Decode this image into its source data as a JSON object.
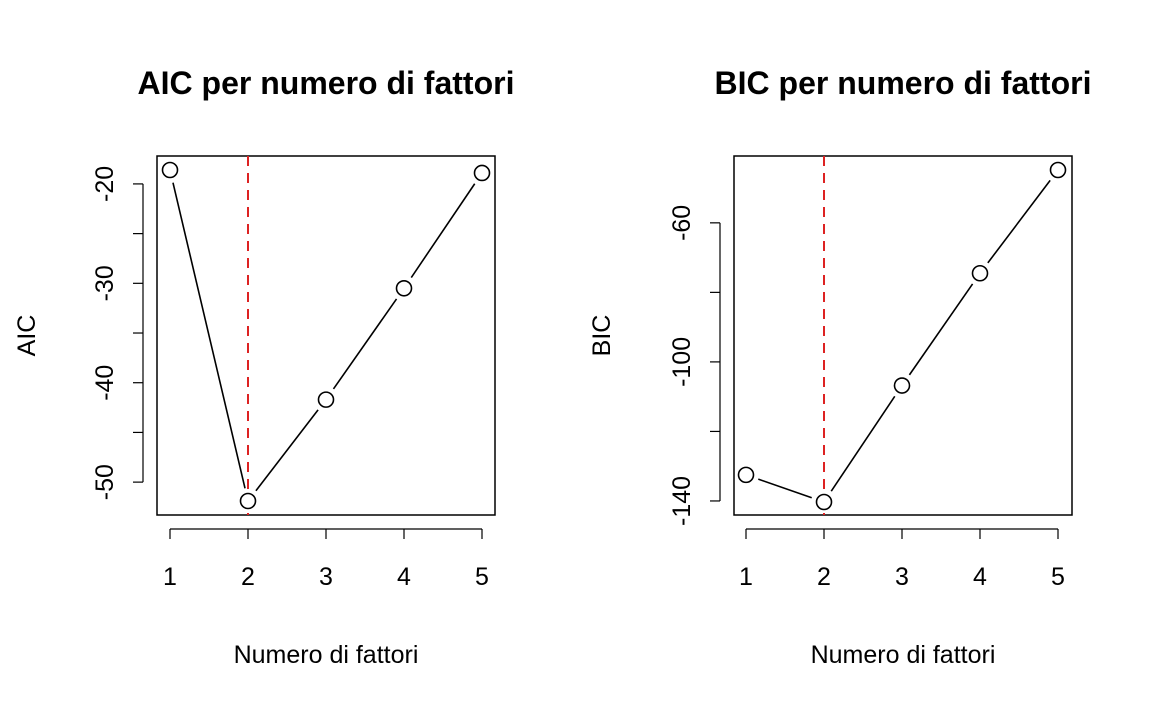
{
  "chart_data": [
    {
      "type": "line",
      "title": "AIC per numero di fattori",
      "xlabel": "Numero di fattori",
      "ylabel": "AIC",
      "x": [
        1,
        2,
        3,
        4,
        5
      ],
      "series": [
        {
          "values": [
            -18.6,
            -51.9,
            -41.7,
            -30.5,
            -18.9
          ]
        }
      ],
      "xlim": [
        1,
        5
      ],
      "ylim": [
        -52,
        -18.6
      ],
      "xticks": [
        1,
        2,
        3,
        4,
        5
      ],
      "yticks": [
        -50,
        -45,
        -40,
        -35,
        -30,
        -25,
        -20
      ],
      "ytick_labels": [
        "-50",
        "",
        "-40",
        "",
        "-30",
        "",
        "-20"
      ],
      "reference_line": {
        "x": 2,
        "style": "dashed",
        "color": "#dd2222"
      },
      "marker": "open-circle",
      "grid": false
    },
    {
      "type": "line",
      "title": "BIC per numero di fattori",
      "xlabel": "Numero di fattori",
      "ylabel": "BIC",
      "x": [
        1,
        2,
        3,
        4,
        5
      ],
      "series": [
        {
          "values": [
            -132.5,
            -140.3,
            -106.8,
            -74.5,
            -44.8
          ]
        }
      ],
      "xlim": [
        1,
        5
      ],
      "ylim": [
        -140.3,
        -44.8
      ],
      "xticks": [
        1,
        2,
        3,
        4,
        5
      ],
      "yticks": [
        -140,
        -120,
        -100,
        -80,
        -60
      ],
      "ytick_labels": [
        "-140",
        "",
        "-100",
        "",
        "-60"
      ],
      "reference_line": {
        "x": 2,
        "style": "dashed",
        "color": "#dd2222"
      },
      "marker": "open-circle",
      "grid": false
    }
  ]
}
